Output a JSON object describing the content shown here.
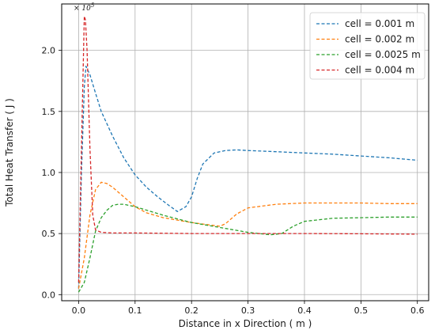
{
  "chart_data": {
    "type": "line",
    "xlabel": "Distance in x Direction ( m )",
    "ylabel": "Total Heat Transfer ( J )",
    "y_scale_label": "× 10",
    "y_scale_exponent": "5",
    "xlim": [
      -0.03,
      0.62
    ],
    "ylim": [
      -0.05,
      2.38
    ],
    "xticks": [
      0.0,
      0.1,
      0.2,
      0.3,
      0.4,
      0.5,
      0.6
    ],
    "xtick_labels": [
      "0.0",
      "0.1",
      "0.2",
      "0.3",
      "0.4",
      "0.5",
      "0.6"
    ],
    "yticks": [
      0.0,
      0.5,
      1.0,
      1.5,
      2.0
    ],
    "ytick_labels": [
      "0.0",
      "0.5",
      "1.0",
      "1.5",
      "2.0"
    ],
    "grid": true,
    "legend_position": "top-right",
    "series": [
      {
        "name": "cell = 0.001 m",
        "color": "#1f77b4",
        "x": [
          0.0,
          0.005,
          0.01,
          0.013,
          0.02,
          0.03,
          0.04,
          0.05,
          0.06,
          0.08,
          0.1,
          0.12,
          0.14,
          0.16,
          0.175,
          0.19,
          0.2,
          0.21,
          0.22,
          0.24,
          0.26,
          0.28,
          0.3,
          0.35,
          0.4,
          0.45,
          0.5,
          0.55,
          0.6
        ],
        "y": [
          0.05,
          1.0,
          1.7,
          1.87,
          1.8,
          1.65,
          1.5,
          1.4,
          1.3,
          1.12,
          0.98,
          0.88,
          0.8,
          0.73,
          0.68,
          0.72,
          0.8,
          0.95,
          1.07,
          1.16,
          1.18,
          1.185,
          1.18,
          1.17,
          1.16,
          1.15,
          1.135,
          1.12,
          1.1
        ]
      },
      {
        "name": "cell = 0.002 m",
        "color": "#ff7f0e",
        "x": [
          0.0,
          0.01,
          0.02,
          0.03,
          0.04,
          0.05,
          0.06,
          0.08,
          0.1,
          0.12,
          0.15,
          0.2,
          0.25,
          0.26,
          0.28,
          0.3,
          0.35,
          0.4,
          0.45,
          0.5,
          0.55,
          0.6
        ],
        "y": [
          0.05,
          0.3,
          0.65,
          0.86,
          0.92,
          0.91,
          0.88,
          0.8,
          0.72,
          0.67,
          0.63,
          0.59,
          0.56,
          0.58,
          0.66,
          0.71,
          0.74,
          0.75,
          0.75,
          0.75,
          0.745,
          0.745
        ]
      },
      {
        "name": "cell = 0.0025 m",
        "color": "#2ca02c",
        "x": [
          0.0,
          0.01,
          0.02,
          0.03,
          0.04,
          0.05,
          0.06,
          0.07,
          0.08,
          0.1,
          0.15,
          0.2,
          0.25,
          0.3,
          0.34,
          0.36,
          0.38,
          0.4,
          0.45,
          0.5,
          0.55,
          0.6
        ],
        "y": [
          0.02,
          0.1,
          0.3,
          0.52,
          0.63,
          0.69,
          0.73,
          0.74,
          0.74,
          0.72,
          0.65,
          0.59,
          0.55,
          0.51,
          0.49,
          0.5,
          0.56,
          0.6,
          0.625,
          0.63,
          0.635,
          0.635
        ]
      },
      {
        "name": "cell = 0.004 m",
        "color": "#d62728",
        "x": [
          0.0,
          0.005,
          0.01,
          0.012,
          0.015,
          0.02,
          0.025,
          0.03,
          0.04,
          0.06,
          0.1,
          0.2,
          0.3,
          0.4,
          0.5,
          0.6
        ],
        "y": [
          0.1,
          1.2,
          2.28,
          2.25,
          2.0,
          1.2,
          0.65,
          0.53,
          0.51,
          0.505,
          0.505,
          0.5,
          0.5,
          0.5,
          0.498,
          0.495
        ]
      }
    ]
  }
}
